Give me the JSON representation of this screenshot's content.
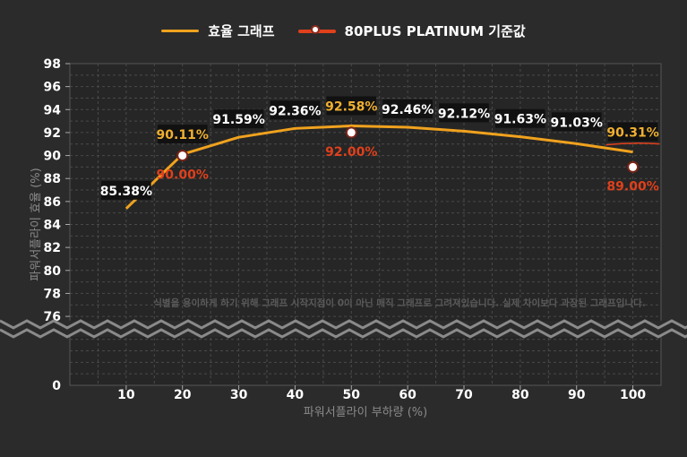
{
  "chart_data": {
    "type": "line",
    "xlabel": "파워서플라이 부하량 (%)",
    "ylabel": "파워서플라이 효율 (%)",
    "xlim": [
      0,
      105
    ],
    "ylim": [
      70,
      98
    ],
    "y_axis_display": {
      "break_between": [
        74,
        76
      ],
      "bottom_tick": 0
    },
    "x_ticks": [
      10,
      20,
      30,
      40,
      50,
      60,
      70,
      80,
      90,
      100
    ],
    "y_ticks": [
      76,
      78,
      80,
      82,
      84,
      86,
      88,
      90,
      92,
      94,
      96,
      98
    ],
    "grid": true,
    "legend_position": "top-center",
    "series": [
      {
        "name": "효율 그래프",
        "style": "line",
        "color": "#f0a21e",
        "x": [
          10,
          20,
          30,
          40,
          50,
          60,
          70,
          80,
          90,
          100
        ],
        "y": [
          85.38,
          90.11,
          91.59,
          92.36,
          92.58,
          92.46,
          92.12,
          91.63,
          91.03,
          90.31
        ],
        "labels": [
          "85.38%",
          "90.11%",
          "91.59%",
          "92.36%",
          "92.58%",
          "92.46%",
          "92.12%",
          "91.63%",
          "91.03%",
          "90.31%"
        ],
        "label_colors": [
          "#ffffff",
          "#f0b030",
          "#ffffff",
          "#ffffff",
          "#f0b030",
          "#ffffff",
          "#ffffff",
          "#ffffff",
          "#ffffff",
          "#f0b030"
        ]
      },
      {
        "name": "80PLUS PLATINUM 기준값",
        "style": "marker",
        "color": "#e0401c",
        "x": [
          20,
          50,
          100
        ],
        "y": [
          90.0,
          92.0,
          89.0
        ],
        "labels": [
          "90.00%",
          "92.00%",
          "89.00%"
        ]
      }
    ],
    "annotation": "식별을 용이하게 하기 위해 그래프 시작지점이 0이 아닌 매직 그래프로 그려져있습니다. 실제 차이보다 과장된 그래프입니다."
  }
}
